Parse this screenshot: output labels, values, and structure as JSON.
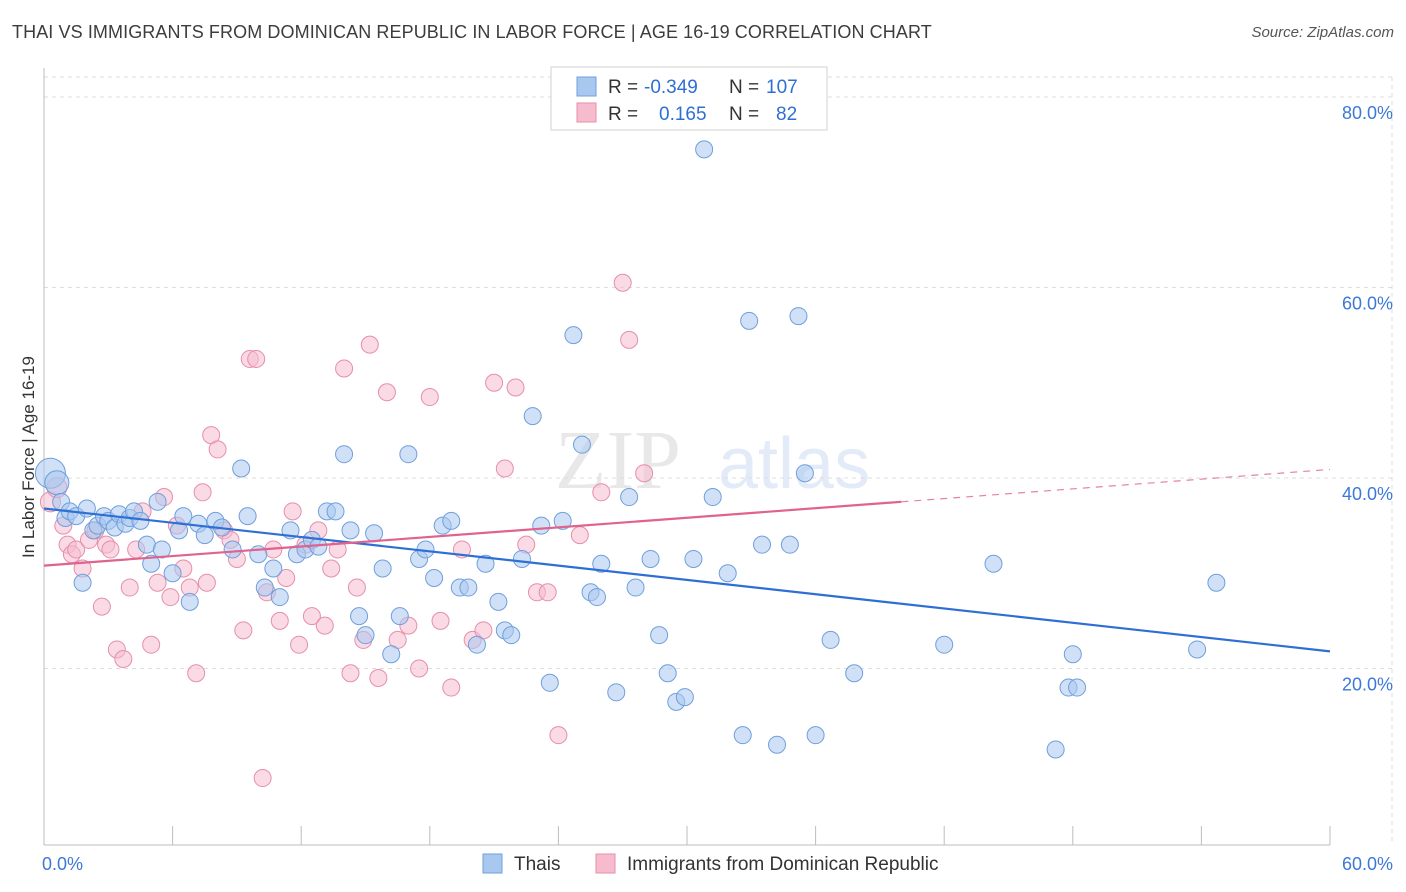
{
  "header": {
    "title": "THAI VS IMMIGRANTS FROM DOMINICAN REPUBLIC IN LABOR FORCE | AGE 16-19 CORRELATION CHART",
    "source": "Source: ZipAtlas.com"
  },
  "watermark": {
    "zip": "ZIP",
    "atlas": "atlas"
  },
  "legend_top": {
    "rows": [
      {
        "r_label": "R =",
        "r_value": "-0.349",
        "n_label": "N =",
        "n_value": "107"
      },
      {
        "r_label": "R =",
        "r_value": "0.165",
        "n_label": "N =",
        "n_value": "82"
      }
    ]
  },
  "legend_bottom": {
    "series1": "Thais",
    "series2": "Immigrants from Dominican Republic"
  },
  "colors": {
    "blue_fill": "#a9c8f0",
    "blue_stroke": "#6f9fdc",
    "blue_line": "#2e6fd4",
    "pink_fill": "#f6bccd",
    "pink_stroke": "#e68fab",
    "pink_line": "#e0628e",
    "tick_text": "#3c78d8",
    "grid": "#dddddd"
  },
  "chart_data": {
    "type": "scatter",
    "title": "THAI VS IMMIGRANTS FROM DOMINICAN REPUBLIC IN LABOR FORCE | AGE 16-19 CORRELATION CHART",
    "xlabel": "",
    "ylabel": "In Labor Force | Age 16-19",
    "xlim": [
      0,
      60
    ],
    "ylim": [
      0,
      80
    ],
    "x_tick_labels": [
      {
        "value": 0,
        "label": "0.0%"
      },
      {
        "value": 60,
        "label": "60.0%"
      }
    ],
    "y_tick_labels": [
      {
        "value": 20,
        "label": "20.0%"
      },
      {
        "value": 40,
        "label": "40.0%"
      },
      {
        "value": 60,
        "label": "60.0%"
      },
      {
        "value": 80,
        "label": "80.0%"
      }
    ],
    "series": [
      {
        "name": "Thais",
        "color": "blue",
        "trend": {
          "x0": 0,
          "y0": 36.8,
          "x1": 60,
          "y1": 21.8
        },
        "points": [
          [
            0.3,
            40.5
          ],
          [
            0.6,
            39.5
          ],
          [
            0.8,
            37.5
          ],
          [
            1.0,
            35.8
          ],
          [
            1.2,
            36.5
          ],
          [
            1.5,
            36.0
          ],
          [
            1.8,
            29.0
          ],
          [
            2.0,
            36.8
          ],
          [
            2.3,
            34.5
          ],
          [
            2.5,
            35.0
          ],
          [
            2.8,
            36.0
          ],
          [
            3.0,
            35.5
          ],
          [
            3.3,
            34.8
          ],
          [
            3.5,
            36.2
          ],
          [
            3.8,
            35.2
          ],
          [
            4.0,
            35.8
          ],
          [
            4.2,
            36.5
          ],
          [
            4.5,
            35.5
          ],
          [
            4.8,
            33.0
          ],
          [
            5.0,
            31.0
          ],
          [
            5.3,
            37.5
          ],
          [
            5.5,
            32.5
          ],
          [
            6.0,
            30.0
          ],
          [
            6.3,
            34.5
          ],
          [
            6.5,
            36.0
          ],
          [
            6.8,
            27.0
          ],
          [
            7.2,
            35.2
          ],
          [
            7.5,
            34.0
          ],
          [
            8.0,
            35.5
          ],
          [
            8.3,
            34.8
          ],
          [
            8.8,
            32.5
          ],
          [
            9.2,
            41.0
          ],
          [
            9.5,
            36.0
          ],
          [
            10.0,
            32.0
          ],
          [
            10.3,
            28.5
          ],
          [
            10.7,
            30.5
          ],
          [
            11.0,
            27.5
          ],
          [
            11.5,
            34.5
          ],
          [
            11.8,
            32.0
          ],
          [
            12.2,
            32.5
          ],
          [
            12.5,
            33.5
          ],
          [
            12.8,
            32.8
          ],
          [
            13.2,
            36.5
          ],
          [
            13.6,
            36.5
          ],
          [
            14.0,
            42.5
          ],
          [
            14.3,
            34.5
          ],
          [
            14.7,
            25.5
          ],
          [
            15.0,
            23.5
          ],
          [
            15.4,
            34.2
          ],
          [
            15.8,
            30.5
          ],
          [
            16.2,
            21.5
          ],
          [
            16.6,
            25.5
          ],
          [
            17.0,
            42.5
          ],
          [
            17.5,
            31.5
          ],
          [
            17.8,
            32.5
          ],
          [
            18.2,
            29.5
          ],
          [
            18.6,
            35.0
          ],
          [
            19.0,
            35.5
          ],
          [
            19.4,
            28.5
          ],
          [
            19.8,
            28.5
          ],
          [
            20.2,
            22.5
          ],
          [
            20.6,
            31.0
          ],
          [
            21.2,
            27.0
          ],
          [
            21.5,
            24.0
          ],
          [
            21.8,
            23.5
          ],
          [
            22.3,
            31.5
          ],
          [
            22.8,
            46.5
          ],
          [
            23.2,
            35.0
          ],
          [
            23.6,
            18.5
          ],
          [
            24.2,
            35.5
          ],
          [
            24.7,
            55.0
          ],
          [
            25.1,
            43.5
          ],
          [
            25.5,
            28.0
          ],
          [
            25.8,
            27.5
          ],
          [
            26.0,
            31.0
          ],
          [
            26.7,
            17.5
          ],
          [
            27.3,
            38.0
          ],
          [
            27.6,
            28.5
          ],
          [
            28.3,
            31.5
          ],
          [
            28.7,
            23.5
          ],
          [
            29.1,
            19.5
          ],
          [
            29.5,
            16.5
          ],
          [
            29.9,
            17.0
          ],
          [
            30.3,
            31.5
          ],
          [
            30.8,
            74.5
          ],
          [
            31.2,
            38.0
          ],
          [
            31.9,
            30.0
          ],
          [
            32.6,
            13.0
          ],
          [
            32.9,
            56.5
          ],
          [
            33.5,
            33.0
          ],
          [
            34.2,
            12.0
          ],
          [
            34.8,
            33.0
          ],
          [
            35.2,
            57.0
          ],
          [
            35.5,
            40.5
          ],
          [
            36.0,
            13.0
          ],
          [
            36.7,
            23.0
          ],
          [
            37.8,
            19.5
          ],
          [
            42.0,
            22.5
          ],
          [
            44.3,
            31.0
          ],
          [
            47.2,
            11.5
          ],
          [
            47.8,
            18.0
          ],
          [
            48.0,
            21.5
          ],
          [
            48.2,
            18.0
          ],
          [
            53.8,
            22.0
          ],
          [
            54.7,
            29.0
          ]
        ]
      },
      {
        "name": "Immigrants from Dominican Republic",
        "color": "pink",
        "trend": {
          "x0": 0,
          "y0": 30.8,
          "x1": 40,
          "y1": 37.5,
          "dash_x1": 60,
          "dash_y1": 40.9
        },
        "points": [
          [
            0.3,
            37.5
          ],
          [
            0.6,
            39.0
          ],
          [
            0.9,
            35.0
          ],
          [
            1.1,
            33.0
          ],
          [
            1.3,
            32.0
          ],
          [
            1.5,
            32.5
          ],
          [
            1.8,
            30.5
          ],
          [
            2.1,
            33.5
          ],
          [
            2.4,
            34.5
          ],
          [
            2.7,
            26.5
          ],
          [
            2.9,
            33.0
          ],
          [
            3.1,
            32.5
          ],
          [
            3.4,
            22.0
          ],
          [
            3.7,
            21.0
          ],
          [
            4.0,
            28.5
          ],
          [
            4.3,
            32.5
          ],
          [
            4.6,
            36.5
          ],
          [
            5.0,
            22.5
          ],
          [
            5.3,
            29.0
          ],
          [
            5.6,
            38.0
          ],
          [
            5.9,
            27.5
          ],
          [
            6.2,
            35.0
          ],
          [
            6.5,
            30.5
          ],
          [
            6.8,
            28.5
          ],
          [
            7.1,
            19.5
          ],
          [
            7.4,
            38.5
          ],
          [
            7.6,
            29.0
          ],
          [
            7.8,
            44.5
          ],
          [
            8.1,
            43.0
          ],
          [
            8.4,
            34.5
          ],
          [
            8.7,
            33.5
          ],
          [
            9.0,
            31.5
          ],
          [
            9.3,
            24.0
          ],
          [
            9.6,
            52.5
          ],
          [
            9.9,
            52.5
          ],
          [
            10.2,
            8.5
          ],
          [
            10.4,
            28.0
          ],
          [
            10.7,
            32.5
          ],
          [
            11.0,
            25.0
          ],
          [
            11.3,
            29.5
          ],
          [
            11.6,
            36.5
          ],
          [
            11.9,
            22.5
          ],
          [
            12.2,
            33.0
          ],
          [
            12.5,
            25.5
          ],
          [
            12.8,
            34.5
          ],
          [
            13.1,
            24.5
          ],
          [
            13.4,
            30.5
          ],
          [
            13.7,
            32.5
          ],
          [
            14.0,
            51.5
          ],
          [
            14.3,
            19.5
          ],
          [
            14.6,
            28.5
          ],
          [
            14.9,
            23.0
          ],
          [
            15.2,
            54.0
          ],
          [
            15.6,
            19.0
          ],
          [
            16.0,
            49.0
          ],
          [
            16.5,
            23.0
          ],
          [
            17.0,
            24.5
          ],
          [
            17.5,
            20.0
          ],
          [
            18.0,
            48.5
          ],
          [
            18.5,
            25.0
          ],
          [
            19.0,
            18.0
          ],
          [
            19.5,
            32.5
          ],
          [
            20.0,
            23.0
          ],
          [
            20.5,
            24.0
          ],
          [
            21.0,
            50.0
          ],
          [
            21.5,
            41.0
          ],
          [
            22.0,
            49.5
          ],
          [
            22.5,
            33.0
          ],
          [
            23.0,
            28.0
          ],
          [
            23.5,
            28.0
          ],
          [
            24.0,
            13.0
          ],
          [
            25.0,
            34.0
          ],
          [
            26.0,
            38.5
          ],
          [
            27.0,
            60.5
          ],
          [
            27.3,
            54.5
          ],
          [
            28.0,
            40.5
          ]
        ]
      }
    ]
  }
}
